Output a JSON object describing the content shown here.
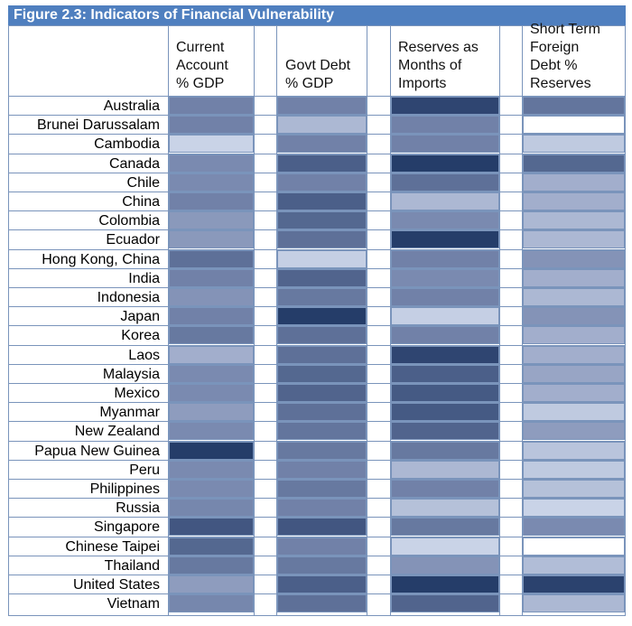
{
  "title": "Figure 2.3: Indicators of Financial Vulnerability",
  "colors": {
    "title_background": "#4f7fbf",
    "title_text": "#ffffff",
    "grid": "#7a94bb",
    "scale_light": "#dde5f5",
    "scale_dark": "#1c3461"
  },
  "chart_data": {
    "type": "heatmap",
    "title": "Figure 2.3: Indicators of Financial Vulnerability",
    "columns": [
      "Current\nAccount\n% GDP",
      "Govt Debt\n% GDP",
      "Reserves as\nMonths of\nImports",
      "Short Term\nForeign\nDebt %\nReserves"
    ],
    "rows": [
      "Australia",
      "Brunei Darussalam",
      "Cambodia",
      "Canada",
      "Chile",
      "China",
      "Colombia",
      "Ecuador",
      "Hong Kong, China",
      "India",
      "Indonesia",
      "Japan",
      "Korea",
      "Laos",
      "Malaysia",
      "Mexico",
      "Myanmar",
      "New Zealand",
      "Papua New Guinea",
      "Peru",
      "Philippines",
      "Russia",
      "Singapore",
      "Chinese Taipei",
      "Thailand",
      "United States",
      "Vietnam"
    ],
    "intensity_scale": "0 = lightest shade, 1 = darkest shade",
    "values": [
      [
        0.55,
        0.55,
        0.9,
        0.62
      ],
      [
        0.55,
        0.25,
        0.55,
        0.0
      ],
      [
        0.1,
        0.55,
        0.55,
        0.15
      ],
      [
        0.5,
        0.75,
        0.95,
        0.7
      ],
      [
        0.5,
        0.55,
        0.65,
        0.3
      ],
      [
        0.55,
        0.75,
        0.25,
        0.3
      ],
      [
        0.42,
        0.7,
        0.5,
        0.25
      ],
      [
        0.42,
        0.65,
        0.95,
        0.25
      ],
      [
        0.65,
        0.12,
        0.55,
        0.45
      ],
      [
        0.55,
        0.72,
        0.5,
        0.3
      ],
      [
        0.45,
        0.6,
        0.55,
        0.25
      ],
      [
        0.55,
        0.95,
        0.12,
        0.45
      ],
      [
        0.6,
        0.65,
        0.55,
        0.3
      ],
      [
        0.3,
        0.65,
        0.9,
        0.3
      ],
      [
        0.5,
        0.7,
        0.75,
        0.35
      ],
      [
        0.5,
        0.72,
        0.78,
        0.3
      ],
      [
        0.4,
        0.65,
        0.78,
        0.15
      ],
      [
        0.5,
        0.62,
        0.72,
        0.4
      ],
      [
        0.95,
        0.6,
        0.6,
        0.18
      ],
      [
        0.5,
        0.55,
        0.25,
        0.15
      ],
      [
        0.5,
        0.6,
        0.55,
        0.2
      ],
      [
        0.52,
        0.55,
        0.2,
        0.1
      ],
      [
        0.8,
        0.8,
        0.6,
        0.5
      ],
      [
        0.7,
        0.55,
        0.1,
        0.0
      ],
      [
        0.6,
        0.6,
        0.45,
        0.22
      ],
      [
        0.4,
        0.75,
        0.95,
        0.92
      ],
      [
        0.52,
        0.65,
        0.72,
        0.25
      ]
    ]
  }
}
